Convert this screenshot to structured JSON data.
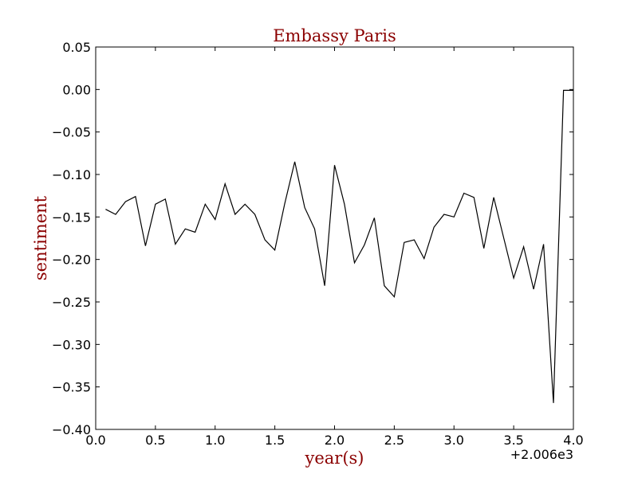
{
  "chart_data": {
    "type": "line",
    "title": "Embassy Paris",
    "xlabel": "year(s)",
    "ylabel": "sentiment",
    "x_offset_label": "+2.006e3",
    "xlim": [
      0.0,
      4.0
    ],
    "ylim": [
      -0.4,
      0.05
    ],
    "x_ticks": [
      "0.0",
      "0.5",
      "1.0",
      "1.5",
      "2.0",
      "2.5",
      "3.0",
      "3.5",
      "4.0"
    ],
    "y_ticks": [
      "0.05",
      "0.00",
      "−0.05",
      "−0.10",
      "−0.15",
      "−0.20",
      "−0.25",
      "−0.30",
      "−0.35",
      "−0.40"
    ],
    "grid": false,
    "line_color": "#000000",
    "label_color": "#8b0000",
    "series": [
      {
        "x": [
          0.083,
          0.167,
          0.25,
          0.333,
          0.417,
          0.5,
          0.583,
          0.667,
          0.75,
          0.833,
          0.917,
          1.0,
          1.083,
          1.167,
          1.25,
          1.333,
          1.417,
          1.5,
          1.583,
          1.667,
          1.75,
          1.833,
          1.917,
          2.0,
          2.083,
          2.167,
          2.25,
          2.333,
          2.417,
          2.5,
          2.583,
          2.667,
          2.75,
          2.833,
          2.917,
          3.0,
          3.083,
          3.167,
          3.25,
          3.333,
          3.417,
          3.5,
          3.583,
          3.667,
          3.75,
          3.833,
          3.917,
          4.0
        ],
        "values": [
          -0.141,
          -0.147,
          -0.132,
          -0.126,
          -0.184,
          -0.135,
          -0.129,
          -0.182,
          -0.164,
          -0.168,
          -0.135,
          -0.153,
          -0.111,
          -0.147,
          -0.135,
          -0.147,
          -0.177,
          -0.189,
          -0.134,
          -0.085,
          -0.139,
          -0.164,
          -0.231,
          -0.089,
          -0.135,
          -0.204,
          -0.183,
          -0.151,
          -0.231,
          -0.244,
          -0.18,
          -0.177,
          -0.199,
          -0.162,
          -0.147,
          -0.15,
          -0.122,
          -0.127,
          -0.187,
          -0.127,
          -0.175,
          -0.222,
          -0.185,
          -0.235,
          -0.182,
          -0.369,
          -0.001,
          -0.001
        ]
      }
    ]
  }
}
